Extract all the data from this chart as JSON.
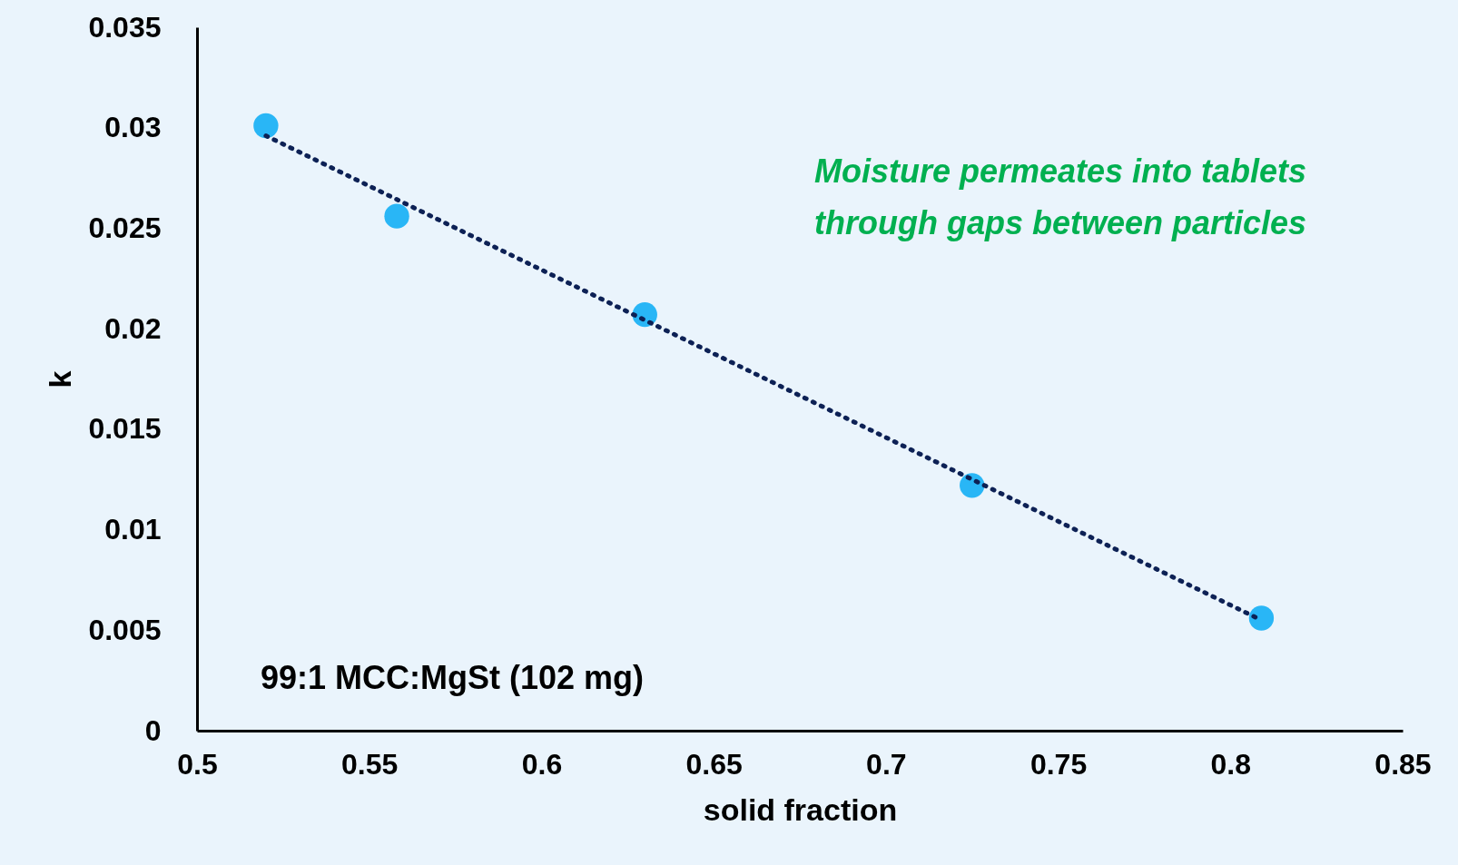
{
  "chart_data": {
    "type": "scatter",
    "xlabel": "solid fraction",
    "ylabel": "k",
    "xlim": [
      0.5,
      0.85
    ],
    "xticks": [
      0.5,
      0.55,
      0.6,
      0.65,
      0.7,
      0.75,
      0.8,
      0.85
    ],
    "ylim": [
      0,
      0.035
    ],
    "yticks": [
      0,
      0.005,
      0.01,
      0.015,
      0.02,
      0.025,
      0.03,
      0.035
    ],
    "grid": false,
    "series": [
      {
        "type": "line",
        "color": "#0d2155",
        "line_style": "dotted",
        "marker": "none",
        "x": [
          0.52,
          0.809
        ],
        "values": [
          0.0296,
          0.0055
        ]
      },
      {
        "color": "#29b6f6",
        "marker": "circle",
        "x": [
          0.52,
          0.558,
          0.63,
          0.725,
          0.809
        ],
        "values": [
          0.0301,
          0.0256,
          0.0207,
          0.0122,
          0.0056
        ]
      }
    ],
    "annotations": [
      "Moisture permeates into tablets",
      "through gaps between particles",
      "99:1 MCC:MgSt (102 mg)"
    ]
  }
}
